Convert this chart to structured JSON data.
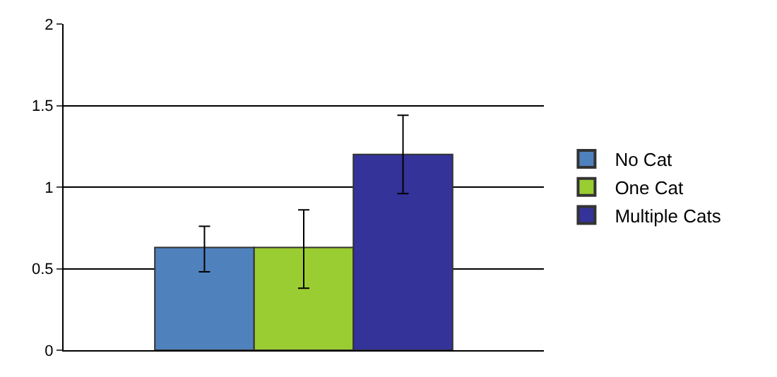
{
  "chart_data": {
    "type": "bar",
    "categories": [
      null
    ],
    "series": [
      {
        "name": "No Cat",
        "color": "#4f81bd",
        "values": [
          0.63
        ],
        "errors": [
          [
            0.48,
            0.76
          ]
        ]
      },
      {
        "name": "One Cat",
        "color": "#9acd32",
        "values": [
          0.63
        ],
        "errors": [
          [
            0.38,
            0.86
          ]
        ]
      },
      {
        "name": "Multiple Cats",
        "color": "#333399",
        "values": [
          1.2
        ],
        "errors": [
          [
            0.96,
            1.44
          ]
        ]
      }
    ],
    "ylim": [
      0,
      2
    ],
    "yticks": [
      0,
      0.5,
      1,
      1.5,
      2
    ],
    "grid": "y",
    "legend": "right"
  }
}
